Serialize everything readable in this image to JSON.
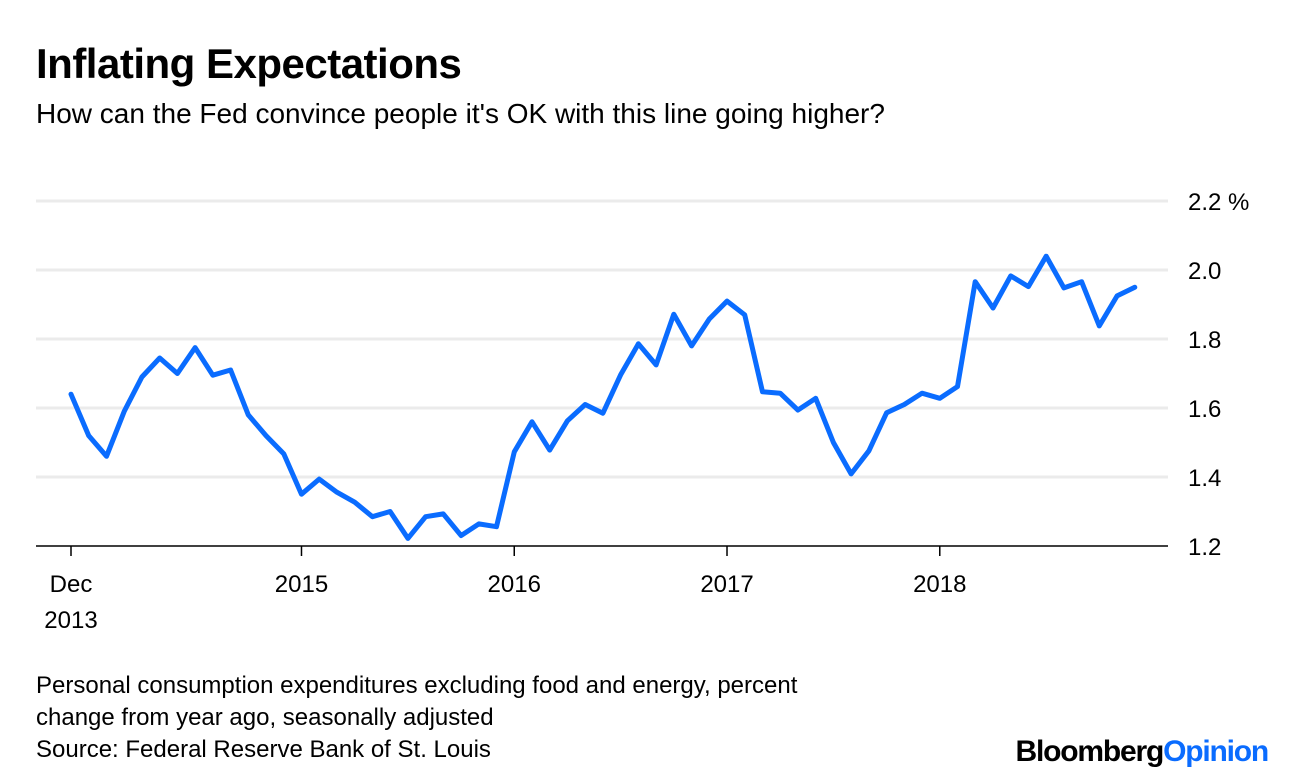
{
  "title": "Inflating Expectations",
  "subtitle": "How can the Fed convince people it's OK with this line going higher?",
  "footer": {
    "note_line1": "Personal consumption expenditures excluding food and energy, percent",
    "note_line2": "change from year ago, seasonally adjusted",
    "source": "Source: Federal Reserve Bank of St. Louis"
  },
  "logo": {
    "part1": "Bloomberg",
    "part2": "Opinion"
  },
  "chart_data": {
    "type": "line",
    "title": "Inflating Expectations",
    "xlabel": "",
    "ylabel": "",
    "y_unit": "%",
    "ylim": [
      1.2,
      2.2
    ],
    "yticks": [
      "1.2",
      "1.4",
      "1.6",
      "1.8",
      "2.0",
      "2.2 %"
    ],
    "ytick_values": [
      1.2,
      1.4,
      1.6,
      1.8,
      2.0,
      2.2
    ],
    "xticks": [
      {
        "label1": "Dec",
        "label2": "2013",
        "index": 0
      },
      {
        "label1": "2015",
        "label2": "",
        "index": 13
      },
      {
        "label1": "2016",
        "label2": "",
        "index": 25
      },
      {
        "label1": "2017",
        "label2": "",
        "index": 37
      },
      {
        "label1": "2018",
        "label2": "",
        "index": 49
      }
    ],
    "grid": true,
    "y_axis_position": "right",
    "line_color": "#0a6cff",
    "x_start": "2013-12",
    "x_end": "2018-12",
    "x_frequency": "monthly",
    "series": [
      {
        "values": [
          1.64,
          1.52,
          1.46,
          1.59,
          1.69,
          1.745,
          1.7,
          1.775,
          1.695,
          1.71,
          1.58,
          1.52,
          1.467,
          1.35,
          1.394,
          1.356,
          1.327,
          1.285,
          1.3,
          1.222,
          1.285,
          1.293,
          1.23,
          1.264,
          1.256,
          1.473,
          1.56,
          1.478,
          1.563,
          1.61,
          1.585,
          1.696,
          1.786,
          1.725,
          1.872,
          1.78,
          1.858,
          1.91,
          1.87,
          1.647,
          1.643,
          1.594,
          1.628,
          1.5,
          1.409,
          1.476,
          1.586,
          1.61,
          1.643,
          1.628,
          1.662,
          1.966,
          1.89,
          1.983,
          1.952,
          2.04,
          1.948,
          1.966,
          1.838,
          1.925,
          1.95
        ]
      }
    ]
  }
}
